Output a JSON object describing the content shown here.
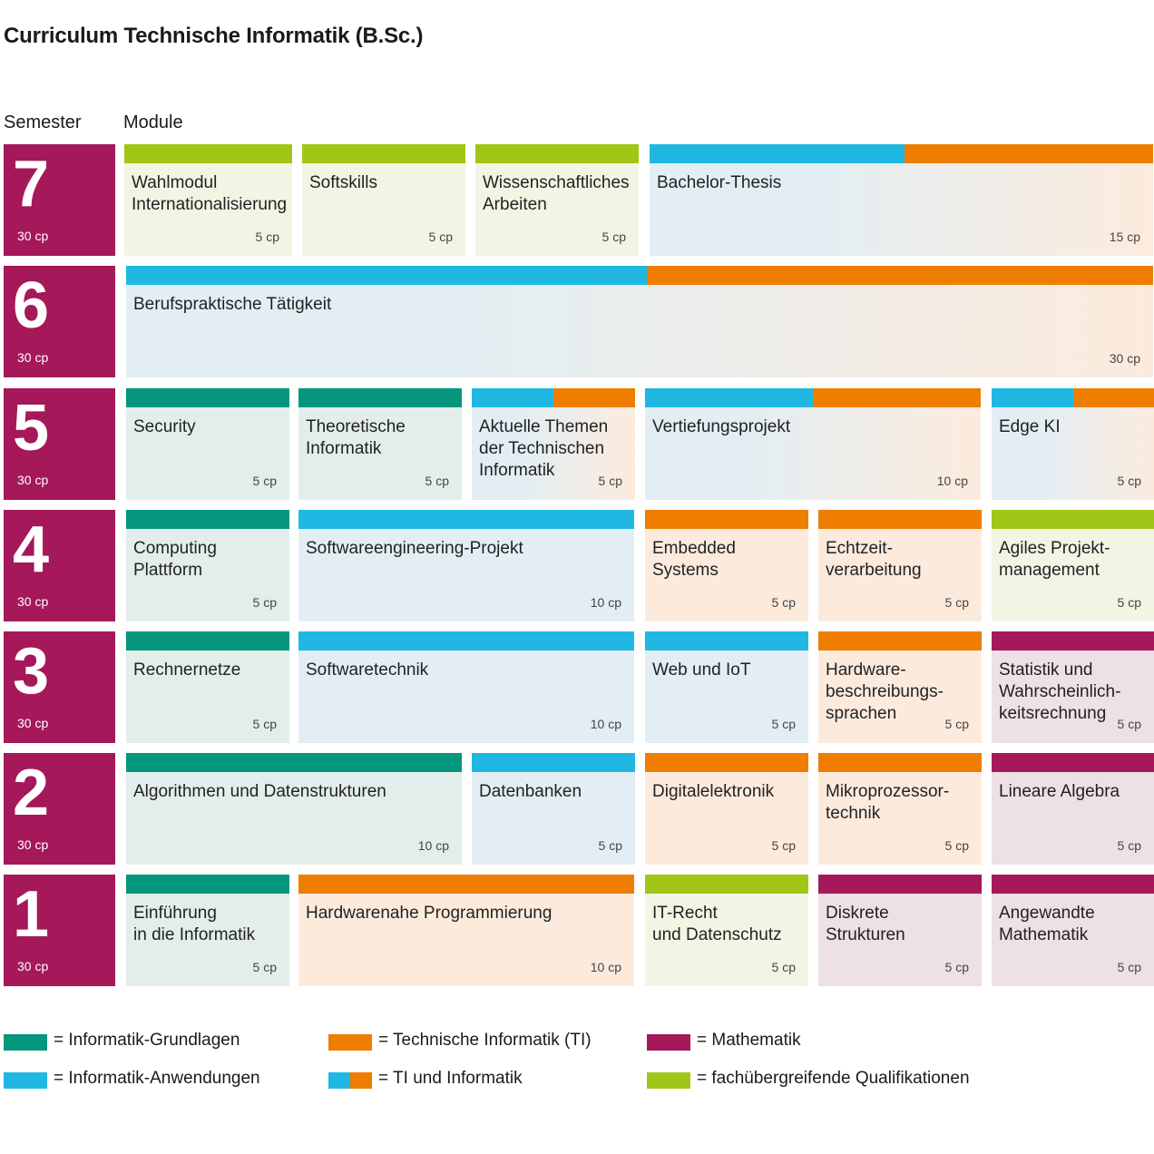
{
  "title": "Curriculum Technische Informatik (B.Sc.)",
  "headers": {
    "semester": "Semester",
    "module": "Module"
  },
  "colors": {
    "grundlagen": "#04977e",
    "anwendungen": "#20b8e2",
    "ti": "#ee7d00",
    "mathematik": "#a5185a",
    "fachuebergreifend": "#a2c617"
  },
  "tints": {
    "grundlagen": "#e3eeec",
    "anwendungen": "#e2eef3",
    "ti": "#fcebdd",
    "mathematik": "#ede0e6",
    "fachuebergreifend": "#f2f5e4"
  },
  "semesters": [
    {
      "number": "7",
      "cp": "30 cp",
      "modules": [
        {
          "name": "Wahlmodul\nInternationalisierung",
          "cp": "5 cp",
          "category": "fachuebergreifend"
        },
        {
          "name": "Softskills",
          "cp": "5 cp",
          "category": "fachuebergreifend"
        },
        {
          "name": "Wissenschaftliches\nArbeiten",
          "cp": "5 cp",
          "category": "fachuebergreifend"
        },
        {
          "name": "Bachelor-Thesis",
          "cp": "15 cp",
          "category": "ti_informatik"
        }
      ]
    },
    {
      "number": "6",
      "cp": "30 cp",
      "modules": [
        {
          "name": "Berufspraktische Tätigkeit",
          "cp": "30 cp",
          "category": "ti_informatik"
        }
      ]
    },
    {
      "number": "5",
      "cp": "30 cp",
      "modules": [
        {
          "name": "Security",
          "cp": "5 cp",
          "category": "grundlagen"
        },
        {
          "name": "Theoretische\nInformatik",
          "cp": "5 cp",
          "category": "grundlagen"
        },
        {
          "name": "Aktuelle Themen\nder Technischen\nInformatik",
          "cp": "5 cp",
          "category": "ti_informatik"
        },
        {
          "name": "Vertiefungsprojekt",
          "cp": "10 cp",
          "category": "ti_informatik"
        },
        {
          "name": "Edge KI",
          "cp": "5 cp",
          "category": "ti_informatik"
        }
      ]
    },
    {
      "number": "4",
      "cp": "30 cp",
      "modules": [
        {
          "name": "Computing\nPlattform",
          "cp": "5 cp",
          "category": "grundlagen"
        },
        {
          "name": "Softwareengineering-Projekt",
          "cp": "10 cp",
          "category": "anwendungen"
        },
        {
          "name": "Embedded\nSystems",
          "cp": "5 cp",
          "category": "ti"
        },
        {
          "name": "Echtzeit-\nverarbeitung",
          "cp": "5 cp",
          "category": "ti"
        },
        {
          "name": "Agiles Projekt-\nmanagement",
          "cp": "5 cp",
          "category": "fachuebergreifend"
        }
      ]
    },
    {
      "number": "3",
      "cp": "30 cp",
      "modules": [
        {
          "name": "Rechnernetze",
          "cp": "5 cp",
          "category": "grundlagen"
        },
        {
          "name": "Softwaretechnik",
          "cp": "10 cp",
          "category": "anwendungen"
        },
        {
          "name": "Web und IoT",
          "cp": "5 cp",
          "category": "anwendungen"
        },
        {
          "name": "Hardware-\nbeschreibungs-\nsprachen",
          "cp": "5 cp",
          "category": "ti"
        },
        {
          "name": "Statistik und\nWahrscheinlich-\nkeitsrechnung",
          "cp": "5 cp",
          "category": "mathematik"
        }
      ]
    },
    {
      "number": "2",
      "cp": "30 cp",
      "modules": [
        {
          "name": "Algorithmen und Datenstrukturen",
          "cp": "10 cp",
          "category": "grundlagen"
        },
        {
          "name": "Datenbanken",
          "cp": "5 cp",
          "category": "anwendungen"
        },
        {
          "name": "Digitalelektronik",
          "cp": "5 cp",
          "category": "ti"
        },
        {
          "name": "Mikroprozessor-\ntechnik",
          "cp": "5 cp",
          "category": "ti"
        },
        {
          "name": "Lineare Algebra",
          "cp": "5 cp",
          "category": "mathematik"
        }
      ]
    },
    {
      "number": "1",
      "cp": "30 cp",
      "modules": [
        {
          "name": "Einführung\nin die Informatik",
          "cp": "5 cp",
          "category": "grundlagen"
        },
        {
          "name": "Hardwarenahe Programmierung",
          "cp": "10 cp",
          "category": "ti"
        },
        {
          "name": "IT-Recht\nund Datenschutz",
          "cp": "5 cp",
          "category": "fachuebergreifend"
        },
        {
          "name": "Diskrete\nStrukturen",
          "cp": "5 cp",
          "category": "mathematik"
        },
        {
          "name": "Angewandte\nMathematik",
          "cp": "5 cp",
          "category": "mathematik"
        }
      ]
    }
  ],
  "legend": [
    {
      "label": "= Informatik-Grundlagen",
      "category": "grundlagen"
    },
    {
      "label": "= Technische Informatik (TI)",
      "category": "ti"
    },
    {
      "label": "= Mathematik",
      "category": "mathematik"
    },
    {
      "label": "= Informatik-Anwendungen",
      "category": "anwendungen"
    },
    {
      "label": "= TI und Informatik",
      "category": "ti_informatik"
    },
    {
      "label": "= fachübergreifende Qualifikationen",
      "category": "fachuebergreifend"
    }
  ]
}
